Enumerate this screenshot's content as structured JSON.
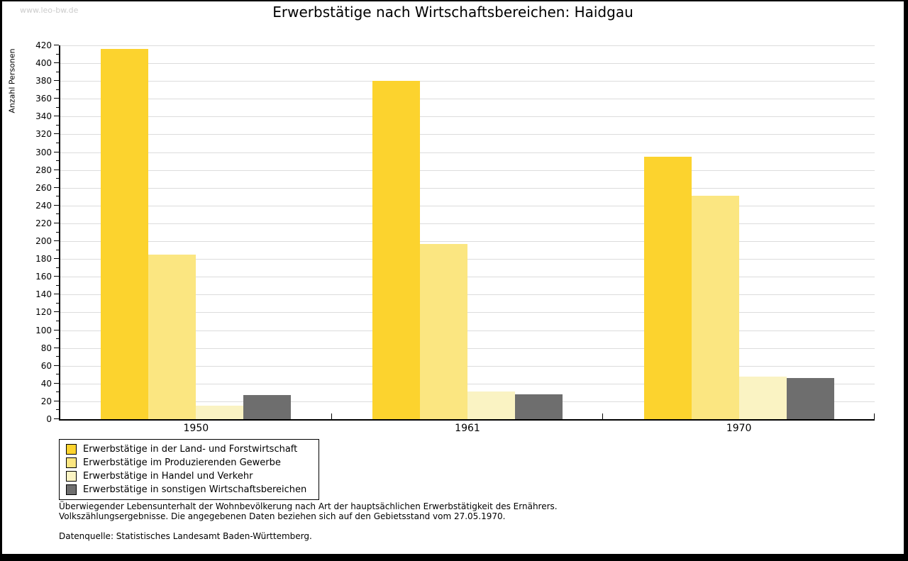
{
  "watermark": "www.leo-bw.de",
  "title": "Erwerbstätige nach Wirtschaftsbereichen: Haidgau",
  "chart_data": {
    "type": "bar",
    "title": "Erwerbstätige nach Wirtschaftsbereichen: Haidgau",
    "xlabel": "",
    "ylabel": "Anzahl Personen",
    "categories": [
      "1950",
      "1961",
      "1970"
    ],
    "series": [
      {
        "name": "Erwerbstätige in der Land- und Forstwirtschaft",
        "color": "#FCD32E",
        "values": [
          416,
          380,
          295
        ]
      },
      {
        "name": "Erwerbstätige im Produzierenden Gewerbe",
        "color": "#FBE681",
        "values": [
          185,
          197,
          251
        ]
      },
      {
        "name": "Erwerbstätige in Handel und Verkehr",
        "color": "#FAF3C3",
        "values": [
          15,
          31,
          48
        ]
      },
      {
        "name": "Erwerbstätige in sonstigen Wirtschaftsbereichen",
        "color": "#6E6E6E",
        "values": [
          27,
          28,
          46
        ]
      }
    ],
    "ylim": [
      0,
      420
    ],
    "ytick_step": 20,
    "minor_tick_step": 10,
    "grid": true,
    "legend_position": "bottom-left"
  },
  "footnotes": {
    "line1": "Überwiegender Lebensunterhalt der Wohnbevölkerung nach Art der hauptsächlichen Erwerbstätigkeit des Ernährers.",
    "line2": "Volkszählungsergebnisse. Die angegebenen Daten beziehen sich auf den Gebietsstand vom 27.05.1970.",
    "source": "Datenquelle: Statistisches Landesamt Baden-Württemberg."
  },
  "colors": {
    "gridline": "#DCDCDC",
    "axis": "#000000",
    "watermark": "#CCCCCC",
    "frame": "#000000",
    "background": "#FFFFFF"
  }
}
